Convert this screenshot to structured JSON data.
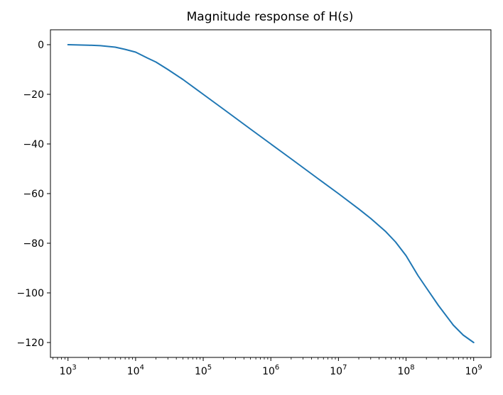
{
  "chart_data": {
    "type": "line",
    "title": "Magnitude response of H(s)",
    "xlabel": "",
    "ylabel": "",
    "x_scale": "log",
    "xlim": [
      550,
      1800000000
    ],
    "ylim": [
      -126,
      6
    ],
    "x_ticks": [
      {
        "value": 1000,
        "base": "10",
        "exp": "3"
      },
      {
        "value": 10000,
        "base": "10",
        "exp": "4"
      },
      {
        "value": 100000,
        "base": "10",
        "exp": "5"
      },
      {
        "value": 1000000,
        "base": "10",
        "exp": "6"
      },
      {
        "value": 10000000,
        "base": "10",
        "exp": "7"
      },
      {
        "value": 100000000,
        "base": "10",
        "exp": "8"
      },
      {
        "value": 1000000000,
        "base": "10",
        "exp": "9"
      }
    ],
    "y_ticks": [
      {
        "value": 0,
        "label": "0"
      },
      {
        "value": -20,
        "label": "−20"
      },
      {
        "value": -40,
        "label": "−40"
      },
      {
        "value": -60,
        "label": "−60"
      },
      {
        "value": -80,
        "label": "−80"
      },
      {
        "value": -100,
        "label": "−100"
      },
      {
        "value": -120,
        "label": "−120"
      }
    ],
    "grid": false,
    "series": [
      {
        "color": "#1f77b4",
        "x": [
          1000,
          2000,
          3000,
          5000,
          7000,
          10000,
          15000,
          20000,
          30000,
          50000,
          100000,
          200000,
          500000,
          1000000,
          2000000,
          5000000,
          10000000,
          20000000,
          30000000,
          50000000,
          70000000,
          100000000,
          150000000,
          200000000,
          300000000,
          500000000,
          700000000,
          1000000000
        ],
        "y": [
          0,
          -0.2,
          -0.4,
          -1.0,
          -1.9,
          -3.0,
          -5.4,
          -7.0,
          -10.0,
          -14.0,
          -20.0,
          -26.0,
          -34.0,
          -40.0,
          -46.0,
          -54.0,
          -60.0,
          -66.2,
          -70.0,
          -75.3,
          -79.5,
          -85.0,
          -93.0,
          -98.0,
          -105.0,
          -113.0,
          -117.0,
          -120.0
        ]
      }
    ]
  }
}
